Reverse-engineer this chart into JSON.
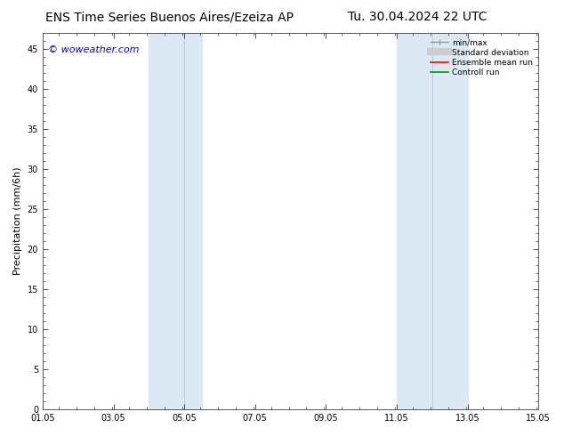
{
  "title_left": "ENS Time Series Buenos Aires/Ezeiza AP",
  "title_right": "Tu. 30.04.2024 22 UTC",
  "xlabel": "",
  "ylabel": "Precipitation (mm/6h)",
  "xlim_min": 1.05,
  "xlim_max": 15.05,
  "ylim_min": 0,
  "ylim_max": 47,
  "xtick_labels": [
    "01.05",
    "03.05",
    "05.05",
    "07.05",
    "09.05",
    "11.05",
    "13.05",
    "15.05"
  ],
  "xtick_positions": [
    1.05,
    3.05,
    5.05,
    7.05,
    9.05,
    11.05,
    13.05,
    15.05
  ],
  "ytick_positions": [
    0,
    5,
    10,
    15,
    20,
    25,
    30,
    35,
    40,
    45
  ],
  "ytick_labels": [
    "0",
    "5",
    "10",
    "15",
    "20",
    "25",
    "30",
    "35",
    "40",
    "45"
  ],
  "shaded_regions": [
    {
      "xmin": 4.05,
      "xmax": 5.05,
      "color": "#dce9f5"
    },
    {
      "xmin": 5.05,
      "xmax": 5.55,
      "color": "#dce9f5"
    },
    {
      "xmin": 11.05,
      "xmax": 12.05,
      "color": "#dce9f5"
    },
    {
      "xmin": 12.05,
      "xmax": 13.05,
      "color": "#dce9f5"
    }
  ],
  "divider_lines": [
    {
      "x": 5.05,
      "color": "#b0c8e0"
    },
    {
      "x": 12.05,
      "color": "#b0c8e0"
    }
  ],
  "watermark_text": "© woweather.com",
  "watermark_color": "#0000cc",
  "legend_items": [
    {
      "label": "min/max",
      "color": "#999999",
      "linestyle": "-",
      "linewidth": 1.2
    },
    {
      "label": "Standard deviation",
      "color": "#cccccc",
      "linestyle": "-",
      "linewidth": 5
    },
    {
      "label": "Ensemble mean run",
      "color": "#ff0000",
      "linestyle": "-",
      "linewidth": 1.5
    },
    {
      "label": "Controll run",
      "color": "#00aa00",
      "linestyle": "-",
      "linewidth": 1.5
    }
  ],
  "background_color": "#ffffff",
  "plot_bg_color": "#ffffff",
  "tick_size": 7,
  "title_fontsize": 10,
  "label_fontsize": 8,
  "watermark_fontsize": 8
}
